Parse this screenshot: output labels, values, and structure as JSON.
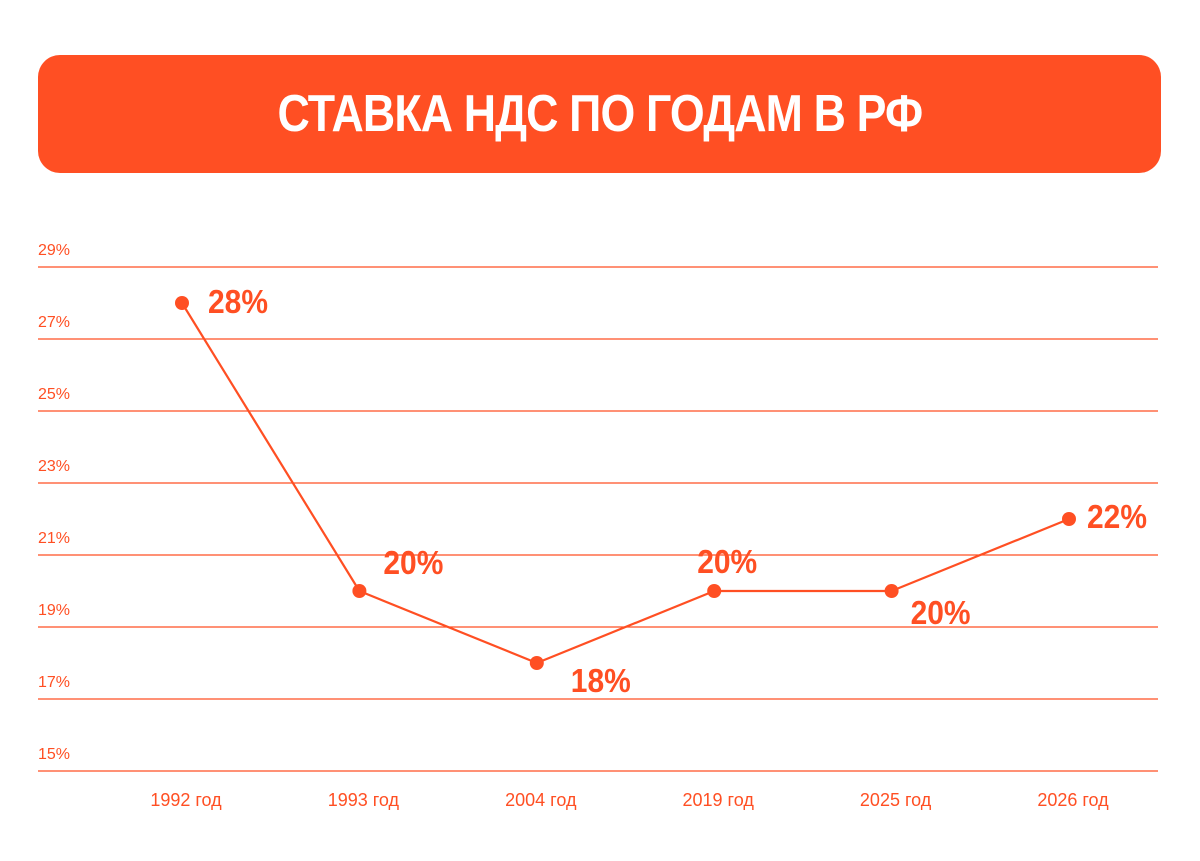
{
  "title": "СТАВКА НДС ПО ГОДАМ В РФ",
  "colors": {
    "accent": "#ff4f23",
    "grid": "#ff4f23",
    "banner_text": "#ffffff"
  },
  "chart_data": {
    "type": "line",
    "title": "СТАВКА НДС ПО ГОДАМ В РФ",
    "categories": [
      "1992 год",
      "1993 год",
      "2004 год",
      "2019 год",
      "2025 год",
      "2026 год"
    ],
    "series": [
      {
        "values": [
          28,
          20,
          18,
          20,
          20,
          22
        ],
        "labels": [
          "28%",
          "20%",
          "18%",
          "20%",
          "20%",
          "22%"
        ]
      }
    ],
    "yticks": [
      15,
      17,
      19,
      21,
      23,
      25,
      27,
      29
    ],
    "ytick_labels": [
      "15%",
      "17%",
      "19%",
      "21%",
      "23%",
      "25%",
      "27%",
      "29%"
    ],
    "ylim": [
      15,
      29
    ],
    "grid": true,
    "legend": "none",
    "xlabel": "",
    "ylabel": ""
  }
}
